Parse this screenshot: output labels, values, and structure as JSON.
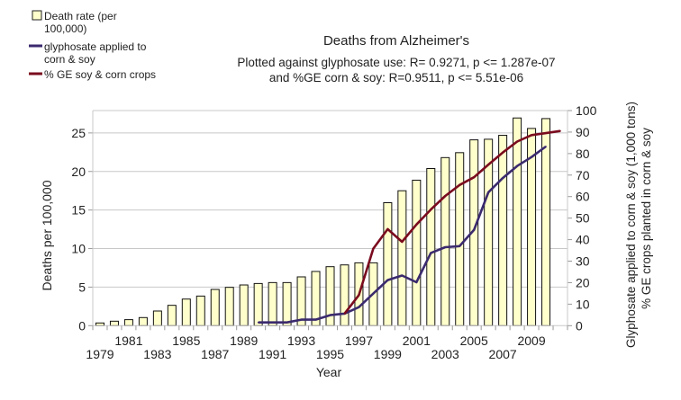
{
  "chart_data": {
    "type": "bar+line",
    "title": "Deaths from Alzheimer's",
    "subtitle_lines": [
      "Plotted against glyphosate use: R= 0.9271, p <= 1.287e-07",
      "and %GE corn & soy: R=0.9511, p <= 5.51e-06"
    ],
    "xlabel": "Year",
    "ylabel_left": "Deaths per 100,000",
    "ylabel_right_lines": [
      "Glyphosate applied to corn & soy (1,000 tons)",
      "% GE crops planted in corn & soy"
    ],
    "categories": [
      1979,
      1980,
      1981,
      1982,
      1983,
      1984,
      1985,
      1986,
      1987,
      1988,
      1989,
      1990,
      1991,
      1992,
      1993,
      1994,
      1995,
      1996,
      1997,
      1998,
      1999,
      2000,
      2001,
      2002,
      2003,
      2004,
      2005,
      2006,
      2007,
      2008,
      2009,
      2010,
      2011
    ],
    "x_tick_labels": [
      "1979",
      "1981",
      "1983",
      "1985",
      "1987",
      "1989",
      "1991",
      "1993",
      "1995",
      "1997",
      "1999",
      "2001",
      "2003",
      "2005",
      "2007",
      "2009"
    ],
    "ylim_left": [
      0,
      27.9
    ],
    "yticks_left": [
      "0",
      "5",
      "10",
      "15",
      "20",
      "25"
    ],
    "ylim_right": [
      0,
      100
    ],
    "yticks_right": [
      "0",
      "10",
      "20",
      "30",
      "40",
      "50",
      "60",
      "70",
      "80",
      "90",
      "100"
    ],
    "grid": "horizontal, left axis",
    "legend_position": "top-left",
    "series": [
      {
        "name": "Death rate (per 100,000)",
        "type": "bar",
        "axis": "left",
        "color": "#ffffcc",
        "values": [
          0.35,
          0.58,
          0.78,
          1.05,
          1.9,
          2.64,
          3.45,
          3.84,
          4.7,
          4.97,
          5.28,
          5.47,
          5.59,
          5.59,
          6.33,
          7.03,
          7.65,
          7.88,
          8.15,
          8.15,
          15.95,
          17.5,
          18.87,
          20.38,
          21.8,
          22.44,
          24.1,
          24.18,
          24.69,
          26.94,
          25.58,
          26.86,
          null
        ]
      },
      {
        "name": "glyphosate applied to corn & soy",
        "type": "line",
        "axis": "right",
        "color": "#3b2a6e",
        "values": [
          null,
          null,
          null,
          null,
          null,
          null,
          null,
          null,
          null,
          null,
          null,
          1.5,
          1.5,
          1.5,
          2.8,
          2.8,
          4.9,
          5.6,
          8.6,
          14.9,
          21.2,
          23.3,
          20.2,
          33.8,
          36.5,
          37,
          44.5,
          62,
          68.6,
          74.2,
          78.4,
          83.3,
          null
        ]
      },
      {
        "name": "% GE soy & corn crops",
        "type": "line",
        "axis": "right",
        "color": "#7a0b1e",
        "values": [
          null,
          null,
          null,
          null,
          null,
          null,
          null,
          null,
          null,
          null,
          null,
          null,
          null,
          null,
          null,
          null,
          null,
          5.6,
          14.2,
          35.8,
          44.9,
          39,
          47,
          54,
          60.3,
          65.4,
          69,
          74.9,
          80.5,
          85.6,
          88.6,
          89.5,
          90.5
        ]
      }
    ]
  }
}
